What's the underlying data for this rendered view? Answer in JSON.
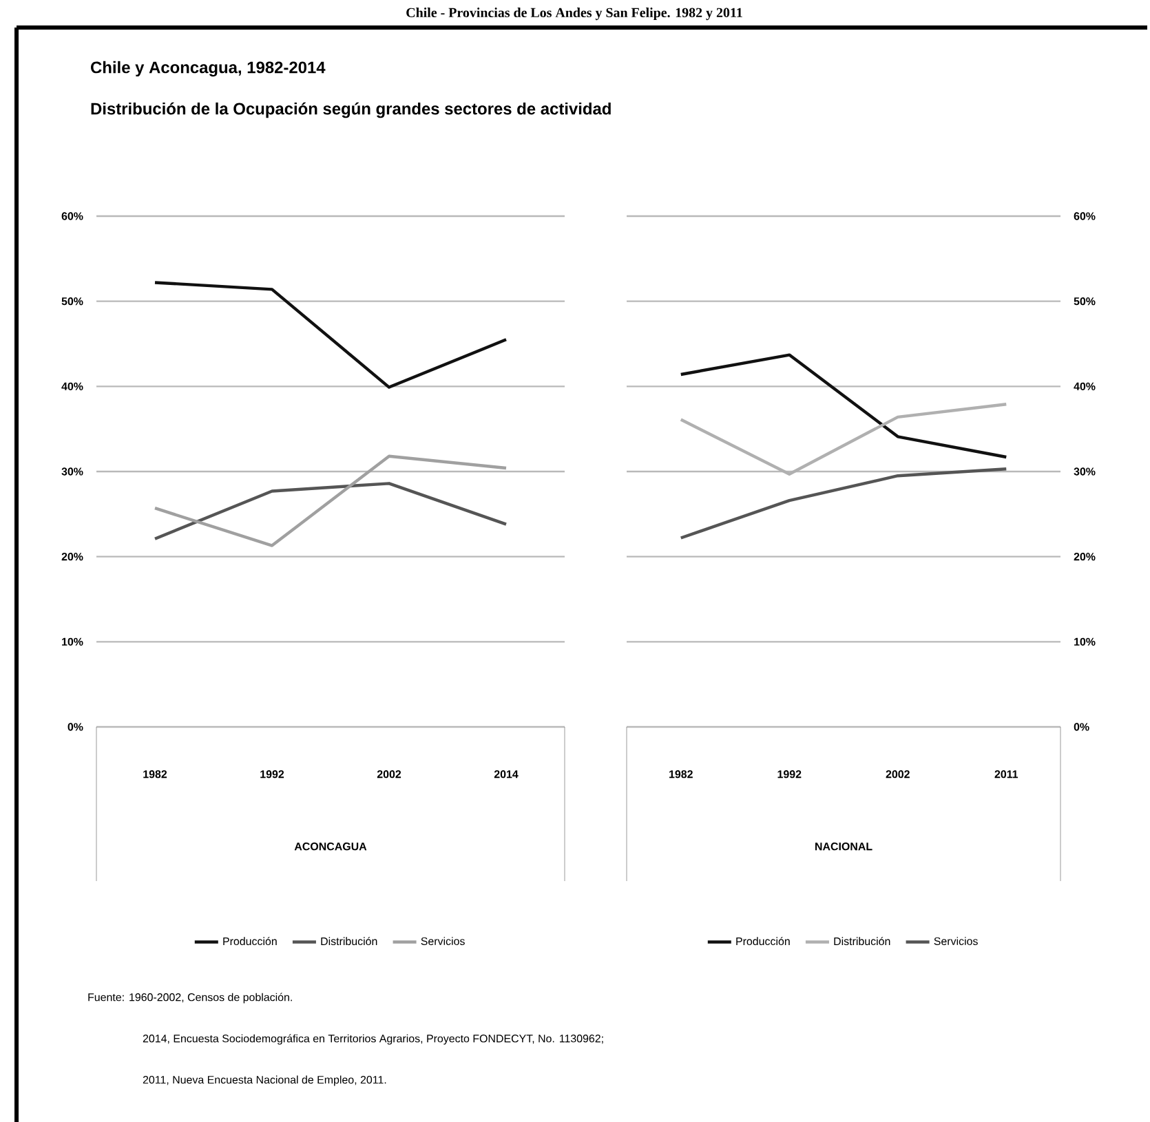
{
  "chart_data": [
    {
      "type": "line",
      "title": "Chile y Aconcagua, 1982-2014",
      "subtitle": "Distribución de la Ocupación según grandes sectores de actividad",
      "categories": [
        "1982",
        "1992",
        "2002",
        "2014"
      ],
      "xlabel": "ACONCAGUA",
      "series": [
        {
          "name": "Producción",
          "color": "#111111",
          "values": [
            52.2,
            51.4,
            39.9,
            45.5
          ]
        },
        {
          "name": "Distribución",
          "color": "#555555",
          "values": [
            22.1,
            27.7,
            28.6,
            23.8
          ]
        },
        {
          "name": "Servicios",
          "color": "#a0a0a0",
          "values": [
            25.7,
            21.3,
            31.8,
            30.4
          ]
        }
      ],
      "ylim": [
        0,
        60
      ],
      "yticks": [
        {
          "value": 0,
          "label": "0%"
        },
        {
          "value": 10,
          "label": "10%"
        },
        {
          "value": 20,
          "label": "20%"
        },
        {
          "value": 30,
          "label": "30%"
        },
        {
          "value": 40,
          "label": "40%"
        },
        {
          "value": 50,
          "label": "50%"
        },
        {
          "value": 60,
          "label": "60%"
        }
      ],
      "grid": "y",
      "legend": "bottom",
      "annotations": [
        "Chile - Provincias de Los Andes y San Felipe. 1982 y 2011"
      ]
    },
    {
      "type": "line",
      "categories": [
        "1982",
        "1992",
        "2002",
        "2011"
      ],
      "xlabel": "NACIONAL",
      "series": [
        {
          "name": "Producción",
          "color": "#111111",
          "values": [
            41.4,
            43.7,
            34.1,
            31.7
          ]
        },
        {
          "name": "Distribución",
          "color": "#b0b0b0",
          "values": [
            36.1,
            29.7,
            36.4,
            37.9
          ]
        },
        {
          "name": "Servicios",
          "color": "#555555",
          "values": [
            22.2,
            26.6,
            29.5,
            30.3
          ]
        }
      ],
      "ylim": [
        0,
        60
      ],
      "yticks": [
        {
          "value": 0,
          "label": "0%"
        },
        {
          "value": 10,
          "label": "10%"
        },
        {
          "value": 20,
          "label": "20%"
        },
        {
          "value": 30,
          "label": "30%"
        },
        {
          "value": 40,
          "label": "40%"
        },
        {
          "value": 50,
          "label": "50%"
        },
        {
          "value": 60,
          "label": "60%"
        }
      ],
      "grid": "y",
      "legend": "bottom",
      "annotations": [
        "Fuente: 1960-2002, Censos de población.",
        "2014, Encuesta Sociodemográfica en Territorios Agrarios, Proyecto FONDECYT, No. 1130962;",
        "2011, Nueva Encuesta Nacional de Empleo, 2011."
      ]
    }
  ]
}
